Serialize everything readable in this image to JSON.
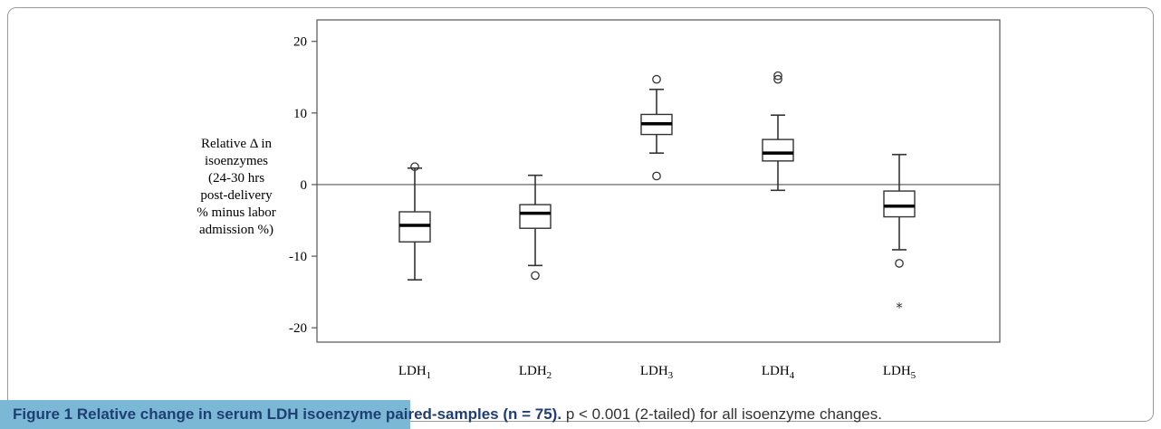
{
  "chart_data": {
    "type": "box",
    "title": "",
    "ylabel_lines": [
      "Relative Δ in",
      "isoenzymes",
      "(24-30 hrs",
      "post-delivery",
      "% minus labor",
      "admission %)"
    ],
    "xlabel": "",
    "ylim": [
      -22,
      23
    ],
    "yticks": [
      {
        "value": 20,
        "label": "20"
      },
      {
        "value": 10,
        "label": "10"
      },
      {
        "value": 0,
        "label": "0"
      },
      {
        "value": -10,
        "label": "-10"
      },
      {
        "value": -20,
        "label": "-20"
      }
    ],
    "reference_line": 0,
    "categories": [
      {
        "base": "LDH",
        "sub": "1"
      },
      {
        "base": "LDH",
        "sub": "2"
      },
      {
        "base": "LDH",
        "sub": "3"
      },
      {
        "base": "LDH",
        "sub": "4"
      },
      {
        "base": "LDH",
        "sub": "5"
      }
    ],
    "boxes": [
      {
        "whisker_low": -13.3,
        "q1": -8.0,
        "median": -5.7,
        "q3": -3.8,
        "whisker_high": 2.3,
        "outliers": [
          2.5
        ],
        "extremes": []
      },
      {
        "whisker_low": -11.3,
        "q1": -6.1,
        "median": -4.0,
        "q3": -2.8,
        "whisker_high": 1.3,
        "outliers": [
          -12.7
        ],
        "extremes": []
      },
      {
        "whisker_low": 4.4,
        "q1": 7.0,
        "median": 8.5,
        "q3": 9.8,
        "whisker_high": 13.3,
        "outliers": [
          14.7,
          1.2
        ],
        "extremes": []
      },
      {
        "whisker_low": -0.8,
        "q1": 3.3,
        "median": 4.4,
        "q3": 6.3,
        "whisker_high": 9.7,
        "outliers": [
          15.2,
          14.7
        ],
        "extremes": []
      },
      {
        "whisker_low": -9.1,
        "q1": -4.5,
        "median": -3.0,
        "q3": -0.9,
        "whisker_high": 4.2,
        "outliers": [
          -11.0
        ],
        "extremes": [
          -17.1
        ]
      }
    ]
  },
  "caption": {
    "figure_label": "Figure 1",
    "title": "Relative change in serum LDH isoenzyme paired-samples (n = 75).",
    "note": "p < 0.001 (2-tailed) for all isoenzyme changes."
  },
  "colors": {
    "caption_bar": "#7bb8d6",
    "caption_title": "#1f3f73"
  }
}
